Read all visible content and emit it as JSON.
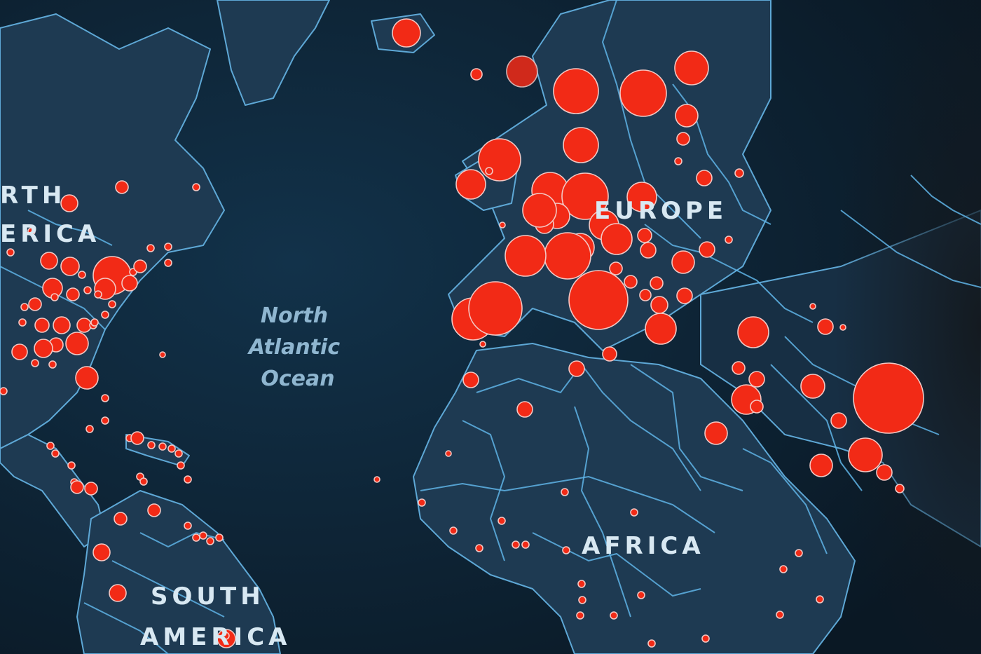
{
  "map": {
    "labels": {
      "north_america": "RTH\nERICA",
      "north_atlantic": [
        "North",
        "Atlantic",
        "Ocean"
      ],
      "europe": "EUROPE",
      "africa": "AFRICA",
      "south_america": [
        "SOUTH",
        "AMERICA"
      ]
    },
    "colors": {
      "ocean": "#0d2233",
      "land": "#1e3a52",
      "border": "#5fb4e6",
      "bubble": "#f22a16",
      "bubble_stroke": "#f3c7c3"
    },
    "marker_type": "proportional-circle"
  }
}
